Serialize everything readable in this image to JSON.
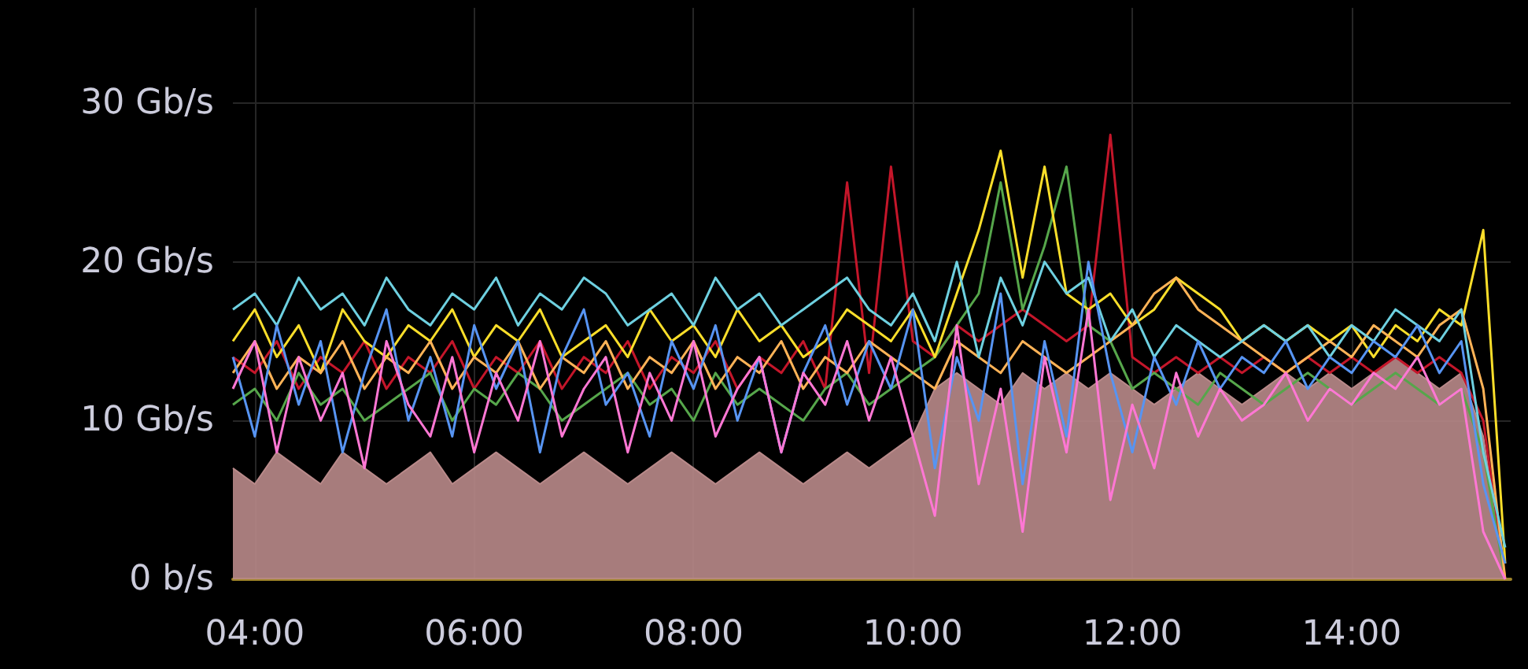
{
  "chart_data": {
    "type": "line",
    "grid": true,
    "marker": "none",
    "xlim": [
      3.8,
      15.45
    ],
    "ylim": [
      0,
      36
    ],
    "xticks": [
      {
        "value": 4,
        "label": "04:00"
      },
      {
        "value": 6,
        "label": "06:00"
      },
      {
        "value": 8,
        "label": "08:00"
      },
      {
        "value": 10,
        "label": "10:00"
      },
      {
        "value": 12,
        "label": "12:00"
      },
      {
        "value": 14,
        "label": "14:00"
      }
    ],
    "yticks": [
      {
        "value": 0,
        "label": "0 b/s"
      },
      {
        "value": 10,
        "label": "10 Gb/s"
      },
      {
        "value": 20,
        "label": "20 Gb/s"
      },
      {
        "value": 30,
        "label": "30 Gb/s"
      }
    ],
    "x": [
      3.8,
      4.0,
      4.2,
      4.4,
      4.6,
      4.8,
      5.0,
      5.2,
      5.4,
      5.6,
      5.8,
      6.0,
      6.2,
      6.4,
      6.6,
      6.8,
      7.0,
      7.2,
      7.4,
      7.6,
      7.8,
      8.0,
      8.2,
      8.4,
      8.6,
      8.8,
      9.0,
      9.2,
      9.4,
      9.6,
      9.8,
      10.0,
      10.2,
      10.4,
      10.6,
      10.8,
      11.0,
      11.2,
      11.4,
      11.6,
      11.8,
      12.0,
      12.2,
      12.4,
      12.6,
      12.8,
      13.0,
      13.2,
      13.4,
      13.6,
      13.8,
      14.0,
      14.2,
      14.4,
      14.6,
      14.8,
      15.0,
      15.2,
      15.4
    ],
    "series": [
      {
        "type": "area",
        "color": "#b98a8a",
        "values": [
          7,
          6,
          8,
          7,
          6,
          8,
          7,
          6,
          7,
          8,
          6,
          7,
          8,
          7,
          6,
          7,
          8,
          7,
          6,
          7,
          8,
          7,
          6,
          7,
          8,
          7,
          6,
          7,
          8,
          7,
          8,
          9,
          12,
          13,
          12,
          11,
          13,
          12,
          13,
          12,
          13,
          12,
          11,
          12,
          13,
          12,
          11,
          12,
          13,
          12,
          13,
          12,
          13,
          14,
          13,
          12,
          13,
          9,
          0
        ]
      },
      {
        "color": "#c4162a",
        "values": [
          14,
          13,
          15,
          12,
          14,
          13,
          15,
          12,
          14,
          13,
          15,
          12,
          14,
          13,
          15,
          12,
          14,
          13,
          15,
          12,
          14,
          13,
          15,
          12,
          14,
          13,
          15,
          12,
          25,
          13,
          26,
          15,
          14,
          16,
          15,
          16,
          17,
          16,
          15,
          16,
          28,
          14,
          13,
          14,
          13,
          14,
          13,
          14,
          13,
          14,
          13,
          14,
          13,
          14,
          13,
          14,
          13,
          10,
          0
        ]
      },
      {
        "color": "#56a64b",
        "values": [
          11,
          12,
          10,
          13,
          11,
          12,
          10,
          11,
          12,
          13,
          10,
          12,
          11,
          13,
          12,
          10,
          11,
          12,
          13,
          11,
          12,
          10,
          13,
          11,
          12,
          11,
          10,
          12,
          13,
          11,
          12,
          13,
          14,
          16,
          18,
          25,
          17,
          21,
          26,
          16,
          15,
          12,
          13,
          12,
          11,
          13,
          12,
          11,
          12,
          13,
          12,
          11,
          12,
          13,
          12,
          11,
          12,
          8,
          0
        ]
      },
      {
        "color": "#fade2a",
        "values": [
          15,
          17,
          14,
          16,
          13,
          17,
          15,
          14,
          16,
          15,
          17,
          14,
          16,
          15,
          17,
          14,
          15,
          16,
          14,
          17,
          15,
          16,
          14,
          17,
          15,
          16,
          14,
          15,
          17,
          16,
          15,
          17,
          14,
          18,
          22,
          27,
          19,
          26,
          18,
          17,
          18,
          16,
          17,
          19,
          18,
          17,
          15,
          16,
          15,
          16,
          15,
          16,
          14,
          16,
          15,
          17,
          16,
          22,
          1
        ]
      },
      {
        "color": "#ffb357",
        "values": [
          13,
          15,
          12,
          14,
          13,
          15,
          12,
          14,
          13,
          15,
          12,
          14,
          13,
          15,
          12,
          14,
          13,
          15,
          12,
          14,
          13,
          15,
          12,
          14,
          13,
          15,
          12,
          14,
          13,
          15,
          14,
          13,
          12,
          15,
          14,
          13,
          15,
          14,
          13,
          14,
          15,
          16,
          18,
          19,
          17,
          16,
          15,
          14,
          13,
          14,
          15,
          14,
          16,
          15,
          14,
          16,
          17,
          12,
          0
        ]
      },
      {
        "color": "#6ed0e0",
        "values": [
          17,
          18,
          16,
          19,
          17,
          18,
          16,
          19,
          17,
          16,
          18,
          17,
          19,
          16,
          18,
          17,
          19,
          18,
          16,
          17,
          18,
          16,
          19,
          17,
          18,
          16,
          17,
          18,
          19,
          17,
          16,
          18,
          15,
          20,
          14,
          19,
          16,
          20,
          18,
          19,
          15,
          17,
          14,
          16,
          15,
          14,
          15,
          16,
          15,
          16,
          14,
          16,
          15,
          17,
          16,
          15,
          17,
          8,
          2
        ]
      },
      {
        "color": "#5794f2",
        "values": [
          14,
          9,
          16,
          11,
          15,
          8,
          13,
          17,
          10,
          14,
          9,
          16,
          12,
          15,
          8,
          14,
          17,
          11,
          13,
          9,
          15,
          12,
          16,
          10,
          14,
          8,
          13,
          16,
          11,
          15,
          12,
          17,
          7,
          14,
          10,
          18,
          6,
          15,
          9,
          20,
          13,
          8,
          14,
          11,
          15,
          12,
          14,
          13,
          15,
          12,
          14,
          13,
          15,
          14,
          16,
          13,
          15,
          6,
          1
        ]
      },
      {
        "color": "#ff77d4",
        "values": [
          12,
          15,
          8,
          14,
          10,
          13,
          7,
          15,
          11,
          9,
          14,
          8,
          13,
          10,
          15,
          9,
          12,
          14,
          8,
          13,
          10,
          15,
          9,
          12,
          14,
          8,
          13,
          11,
          15,
          10,
          14,
          9,
          4,
          16,
          6,
          12,
          3,
          14,
          8,
          17,
          5,
          11,
          7,
          13,
          9,
          12,
          10,
          11,
          13,
          10,
          12,
          11,
          13,
          12,
          14,
          11,
          12,
          3,
          0
        ]
      }
    ]
  }
}
